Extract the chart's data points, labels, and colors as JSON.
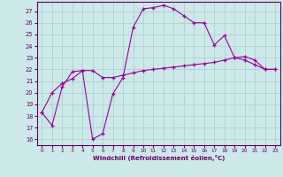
{
  "title": "",
  "xlabel": "Windchill (Refroidissement éolien,°C)",
  "background_color": "#cce8e8",
  "grid_color": "#aacccc",
  "line_color": "#990099",
  "spine_color": "#660066",
  "text_color": "#660066",
  "xlim_min": -0.5,
  "xlim_max": 23.5,
  "ylim_min": 15.5,
  "ylim_max": 27.8,
  "yticks": [
    16,
    17,
    18,
    19,
    20,
    21,
    22,
    23,
    24,
    25,
    26,
    27
  ],
  "xticks": [
    0,
    1,
    2,
    3,
    4,
    5,
    6,
    7,
    8,
    9,
    10,
    11,
    12,
    13,
    14,
    15,
    16,
    17,
    18,
    19,
    20,
    21,
    22,
    23
  ],
  "line1_x": [
    0,
    1,
    2,
    3,
    4,
    5,
    6,
    7,
    8,
    9,
    10,
    11,
    12,
    13,
    14,
    15,
    16,
    17,
    18,
    19,
    20,
    21,
    22,
    23
  ],
  "line1_y": [
    18.3,
    17.2,
    20.5,
    21.8,
    21.9,
    16.0,
    16.5,
    19.9,
    21.3,
    25.6,
    27.2,
    27.3,
    27.5,
    27.2,
    26.6,
    26.0,
    26.0,
    24.1,
    24.9,
    23.0,
    23.1,
    22.8,
    22.0,
    22.0
  ],
  "line2_x": [
    0,
    1,
    2,
    3,
    4,
    5,
    6,
    7,
    8,
    9,
    10,
    11,
    12,
    13,
    14,
    15,
    16,
    17,
    18,
    19,
    20,
    21,
    22,
    23
  ],
  "line2_y": [
    18.3,
    20.0,
    20.8,
    21.2,
    21.9,
    21.9,
    21.3,
    21.3,
    21.5,
    21.7,
    21.9,
    22.0,
    22.1,
    22.2,
    22.3,
    22.4,
    22.5,
    22.6,
    22.8,
    23.0,
    22.8,
    22.4,
    22.0,
    22.0
  ],
  "linewidth": 0.8,
  "markersize": 3.5,
  "xlabel_fontsize": 5.0,
  "xtick_fontsize": 4.2,
  "ytick_fontsize": 4.8
}
